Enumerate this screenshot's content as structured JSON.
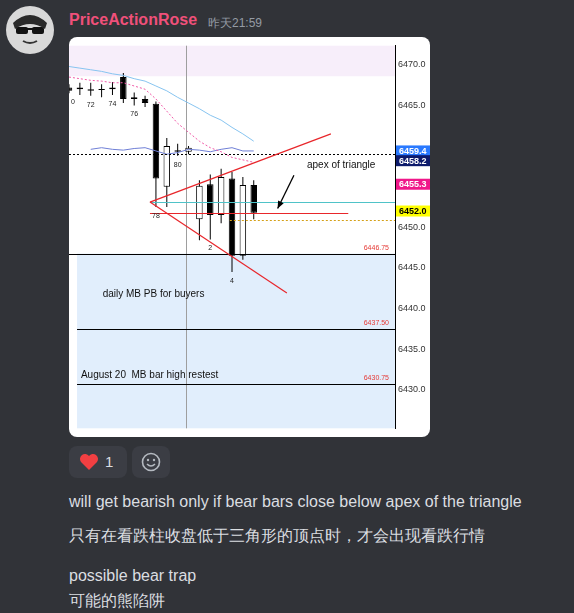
{
  "message": {
    "author": "PriceActionRose",
    "timestamp": "昨天21:59",
    "reactions": [
      {
        "count": 1
      }
    ],
    "lines": [
      "will get bearish only if bear bars close below apex of the triangle",
      "只有在看跌柱收盘低于三角形的顶点时，才会出现看跌行情",
      "possible bear trap",
      "可能的熊陷阱"
    ]
  },
  "chart_data": {
    "type": "candlestick",
    "categories": [
      "0",
      null,
      "72",
      null,
      "74",
      null,
      "76",
      null,
      "78",
      null,
      "80",
      null,
      null,
      "2",
      null,
      "4",
      null,
      null,
      null,
      null,
      null,
      null,
      null,
      null,
      null,
      null,
      null,
      null,
      null,
      null,
      null
    ],
    "open": [
      6467.2,
      6467.0,
      6466.8,
      6467.0,
      6467.0,
      6468.5,
      6466.0,
      6465.8,
      6465.2,
      6455.0,
      6459.5,
      6459.3,
      6451.0,
      6455.3,
      6451.5,
      6456.0,
      6446.5,
      6455.2,
      null,
      null,
      null,
      null,
      null,
      null,
      null,
      null,
      null,
      null,
      null,
      null,
      null
    ],
    "high": [
      6467.6,
      6467.8,
      6467.8,
      6467.6,
      6467.9,
      6469.0,
      6466.6,
      6466.2,
      6465.5,
      6461.0,
      6460.3,
      6460.0,
      6455.8,
      6456.5,
      6457.2,
      6456.8,
      6456.2,
      6455.8,
      null,
      null,
      null,
      null,
      null,
      null,
      null,
      null,
      null,
      null,
      null,
      null,
      null
    ],
    "low": [
      6466.5,
      6466.3,
      6466.2,
      6466.0,
      6466.3,
      6465.3,
      6465.0,
      6464.8,
      6452.5,
      6452.5,
      6458.8,
      6459.0,
      6448.4,
      6448.5,
      6450.5,
      6444.5,
      6446.0,
      6451.0,
      null,
      null,
      null,
      null,
      null,
      null,
      null,
      null,
      null,
      null,
      null,
      null,
      null
    ],
    "close": [
      6466.8,
      6467.2,
      6467.0,
      6466.9,
      6467.2,
      6465.8,
      6465.8,
      6465.3,
      6456.0,
      6460.0,
      6459.3,
      6459.8,
      6455.1,
      6451.5,
      6456.2,
      6446.5,
      6455.2,
      6451.8,
      null,
      null,
      null,
      null,
      null,
      null,
      null,
      null,
      null,
      null,
      null,
      null,
      null
    ],
    "series": [
      {
        "type": "line",
        "color": "#87c4f0",
        "line_style": "solid",
        "values": [
          6469.8,
          6469.6,
          6469.4,
          6469.2,
          6468.9,
          6468.7,
          6468.3,
          6468.0,
          6467.4,
          6466.8,
          6466.0,
          6465.3,
          6464.6,
          6463.8,
          6463.2,
          6462.3,
          6461.5,
          6460.6,
          null,
          null,
          null,
          null,
          null,
          null,
          null,
          null,
          null,
          null,
          null,
          null,
          null
        ]
      },
      {
        "type": "line",
        "color": "#f05aa8",
        "line_style": "dotted",
        "values": [
          6468.5,
          6468.3,
          6468.1,
          6468.0,
          6467.8,
          6467.8,
          6467.4,
          6467.0,
          6465.8,
          6464.3,
          6462.8,
          6461.7,
          6460.6,
          6459.8,
          6459.3,
          6458.6,
          6458.3,
          6458.0,
          null,
          null,
          null,
          null,
          null,
          null,
          null,
          null,
          null,
          null,
          null,
          null,
          null
        ]
      },
      {
        "type": "line",
        "color": "#6f7fd6",
        "line_style": "solid",
        "values": [
          null,
          null,
          6459.6,
          6459.8,
          6459.6,
          6459.5,
          6459.7,
          6459.8,
          6459.4,
          6459.0,
          6459.2,
          6459.6,
          6459.5,
          6459.3,
          6459.6,
          6459.8,
          6459.4,
          6459.4,
          null,
          null,
          null,
          null,
          null,
          null,
          null,
          null,
          null,
          null,
          null,
          null,
          null
        ]
      }
    ],
    "ylim": [
      6425.2,
      6472.4
    ],
    "yticks": [
      {
        "value": 6430,
        "label": "6430.0"
      },
      {
        "value": 6435,
        "label": "6435.0"
      },
      {
        "value": 6440,
        "label": "6440.0"
      },
      {
        "value": 6445,
        "label": "6445.0"
      },
      {
        "value": 6450,
        "label": "6450.0"
      },
      {
        "value": 6465,
        "label": "6465.0"
      },
      {
        "value": 6470,
        "label": "6470.0"
      }
    ],
    "grid": false,
    "tick_labels": "y",
    "zones": [
      {
        "x": [
          0,
          30
        ],
        "y": [
          6468.6,
          6472.4
        ],
        "color": "#f7eefa"
      },
      {
        "x": [
          0.74,
          30
        ],
        "y": [
          6425.2,
          6446.75
        ],
        "color": "#e1eefc"
      }
    ],
    "levels": [
      {
        "value": 6446.75,
        "label": "6446.75",
        "x": [
          0,
          30
        ],
        "color": "#000000"
      },
      {
        "value": 6437.5,
        "label": "6437.50",
        "x": [
          0.74,
          30
        ],
        "color": "#000000"
      },
      {
        "value": 6430.75,
        "label": "6430.75",
        "x": [
          0.74,
          30
        ],
        "color": "#000000"
      }
    ],
    "hlines": [
      {
        "value": 6459.0,
        "x": [
          0,
          30
        ],
        "color": "#000000",
        "line_style": "dotted"
      },
      {
        "value": 6453.1,
        "x": [
          7.45,
          30
        ],
        "color": "#4fc3c8",
        "line_style": "solid"
      },
      {
        "value": 6451.8,
        "x": [
          7.45,
          25.7
        ],
        "color": "#e8262b",
        "line_style": "solid"
      },
      {
        "value": 6450.9,
        "x": [
          14.8,
          30
        ],
        "color": "#d4a017",
        "line_style": "dotted"
      }
    ],
    "triangle": [
      {
        "x": [
          7.45,
          24.1
        ],
        "y": [
          6453.1,
          6461.5
        ],
        "color": "#e8262b"
      },
      {
        "x": [
          7.45,
          20.05
        ],
        "y": [
          6453.1,
          6441.9
        ],
        "color": "#e8262b"
      }
    ],
    "vline": {
      "x": 10.76,
      "color": "#9e9e9e"
    },
    "texts": [
      {
        "text": "apex of triangle",
        "x": 21.9,
        "y": 6457.6
      },
      {
        "text": "daily MB PB for buyers",
        "x": 3.1,
        "y": 6441.7
      },
      {
        "text": "August 20  MB bar high restest",
        "x": 1.1,
        "y": 6431.8
      }
    ],
    "arrow": {
      "x": [
        20.7,
        19.2
      ],
      "y": [
        6456.4,
        6452.3
      ]
    },
    "price_tags": [
      {
        "value": 6459.4,
        "label": "6459.4",
        "color": "#2979ff"
      },
      {
        "value": 6458.2,
        "label": "6458.2",
        "color": "#0d1a6b"
      },
      {
        "value": 6455.3,
        "label": "6455.3",
        "color": "#f0178a"
      },
      {
        "value": 6452.0,
        "label": "6452.0",
        "color": "#ffff00"
      }
    ]
  }
}
